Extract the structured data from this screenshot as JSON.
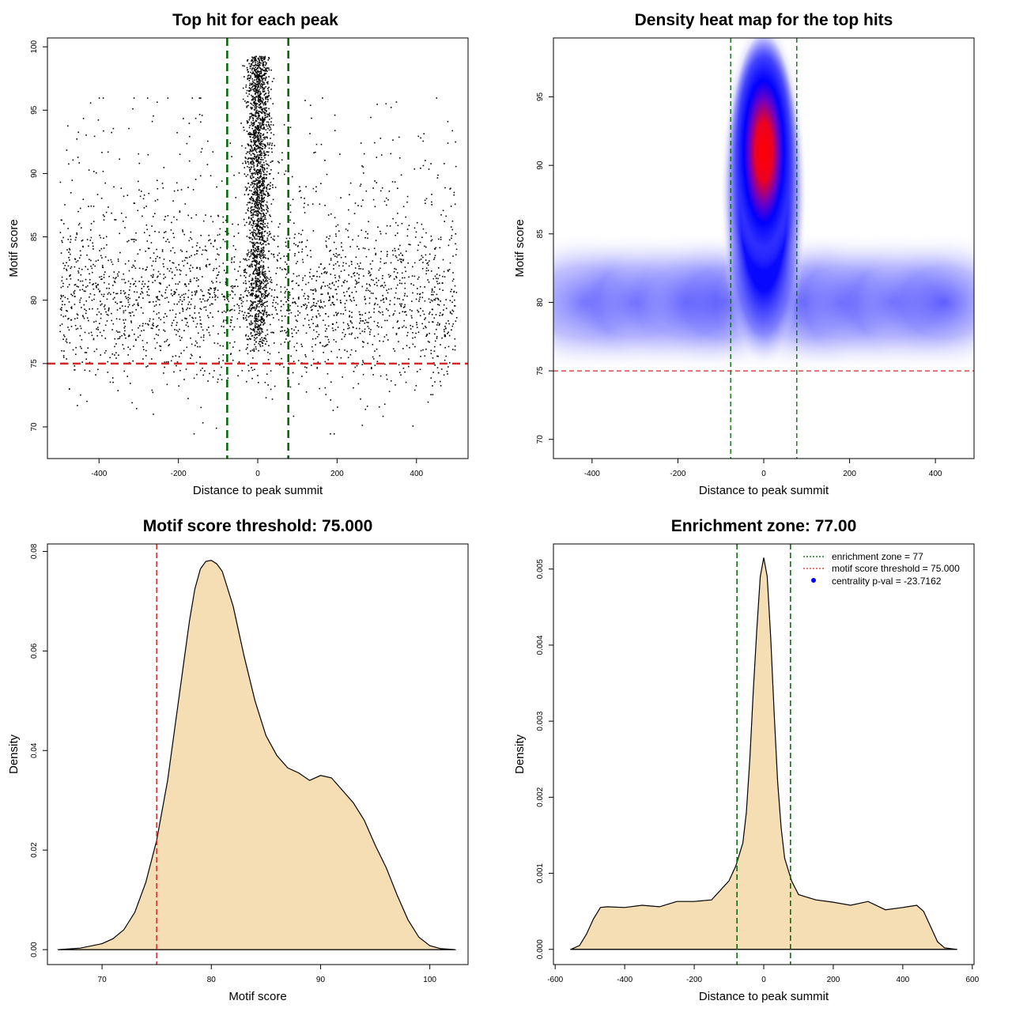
{
  "chart_data": [
    {
      "type": "scatter",
      "title": "Top hit for each peak",
      "xlabel": "Distance to peak summit",
      "ylabel": "Motif score",
      "xlim": [
        -530,
        530
      ],
      "ylim": [
        67.5,
        100.7
      ],
      "xticks": [
        -400,
        -200,
        0,
        200,
        400
      ],
      "xtick_labels": [
        "-400",
        "-200",
        "0",
        "200",
        "400"
      ],
      "yticks": [
        70,
        75,
        80,
        85,
        90,
        95,
        100
      ],
      "ytick_labels": [
        "70",
        "75",
        "80",
        "85",
        "90",
        "95",
        "100"
      ],
      "background_distribution": {
        "x_range": [
          -500,
          500
        ],
        "score_mean": 80,
        "score_sd": 3.2,
        "count": 2600
      },
      "central_cluster": {
        "x_mean": 0,
        "x_sd": 14,
        "score_range": [
          76,
          99.3
        ],
        "count": 1900
      },
      "vlines": [
        -77,
        77
      ],
      "hline": 75,
      "vline_color": "#006400",
      "hline_color": "#d62728",
      "point_color": "#000000"
    },
    {
      "type": "heatmap",
      "title": "Density heat map for the top hits",
      "xlabel": "Distance to peak summit",
      "ylabel": "Motif score",
      "xlim": [
        -490,
        490
      ],
      "ylim": [
        68.6,
        99.3
      ],
      "xticks": [
        -400,
        -200,
        0,
        200,
        400
      ],
      "xtick_labels": [
        "-400",
        "-200",
        "0",
        "200",
        "400"
      ],
      "yticks": [
        70,
        75,
        80,
        85,
        90,
        95
      ],
      "ytick_labels": [
        "70",
        "75",
        "80",
        "85",
        "90",
        "95"
      ],
      "hotspot": {
        "x": 0,
        "y": 91
      },
      "vlines": [
        -77,
        77
      ],
      "hline": 75,
      "color_scale": [
        "#ffffff",
        "#0000ff",
        "#ff0000"
      ]
    },
    {
      "type": "area",
      "title": "Motif score threshold: 75.000",
      "xlabel": "Motif score",
      "ylabel": "Density",
      "xlim": [
        65,
        103.5
      ],
      "ylim": [
        -0.003,
        0.0815
      ],
      "xticks": [
        70,
        80,
        90,
        100
      ],
      "xtick_labels": [
        "70",
        "80",
        "90",
        "100"
      ],
      "yticks": [
        0,
        0.02,
        0.04,
        0.06,
        0.08
      ],
      "ytick_labels": [
        "0.00",
        "0.02",
        "0.04",
        "0.06",
        "0.08"
      ],
      "x": [
        66,
        68,
        70,
        71,
        72,
        73,
        74,
        75,
        76,
        77,
        77.5,
        78,
        78.5,
        79,
        79.5,
        80,
        80.5,
        81,
        82,
        83,
        84,
        85,
        86,
        87,
        88,
        89,
        90,
        91,
        92,
        93,
        94,
        95,
        96,
        97,
        98,
        99,
        100,
        101,
        102.3
      ],
      "y": [
        0,
        0.0003,
        0.0012,
        0.0022,
        0.004,
        0.0075,
        0.0135,
        0.022,
        0.034,
        0.05,
        0.058,
        0.066,
        0.0725,
        0.0765,
        0.078,
        0.0782,
        0.0775,
        0.076,
        0.069,
        0.059,
        0.05,
        0.043,
        0.039,
        0.0365,
        0.0355,
        0.034,
        0.035,
        0.0345,
        0.032,
        0.0295,
        0.026,
        0.021,
        0.0165,
        0.011,
        0.006,
        0.0025,
        0.0008,
        0.0002,
        0
      ],
      "vline": 75,
      "fill_color": "#f5deb3",
      "vline_color": "#d62728"
    },
    {
      "type": "area",
      "title": "Enrichment zone: 77.00",
      "xlabel": "Distance to peak summit",
      "ylabel": "Density",
      "xlim": [
        -605,
        605
      ],
      "ylim": [
        -0.0002,
        0.00533
      ],
      "xticks": [
        -600,
        -400,
        -200,
        0,
        200,
        400,
        600
      ],
      "xtick_labels": [
        "-600",
        "-400",
        "-200",
        "0",
        "200",
        "400",
        "600"
      ],
      "yticks": [
        0,
        0.001,
        0.002,
        0.003,
        0.004,
        0.005
      ],
      "ytick_labels": [
        "0.000",
        "0.001",
        "0.002",
        "0.003",
        "0.004",
        "0.005"
      ],
      "x": [
        -555,
        -530,
        -510,
        -490,
        -470,
        -450,
        -400,
        -350,
        -300,
        -250,
        -200,
        -150,
        -100,
        -80,
        -60,
        -50,
        -40,
        -30,
        -20,
        -10,
        0,
        10,
        20,
        30,
        40,
        50,
        60,
        80,
        100,
        150,
        200,
        250,
        300,
        350,
        400,
        440,
        460,
        480,
        500,
        520,
        555
      ],
      "y": [
        0,
        5e-05,
        0.0002,
        0.0004,
        0.00055,
        0.00056,
        0.00055,
        0.00058,
        0.00056,
        0.00063,
        0.00063,
        0.00065,
        0.0009,
        0.0011,
        0.0014,
        0.0018,
        0.0025,
        0.0034,
        0.0042,
        0.0049,
        0.00515,
        0.0049,
        0.0041,
        0.0031,
        0.0022,
        0.0016,
        0.0012,
        0.0009,
        0.00072,
        0.00065,
        0.00062,
        0.00058,
        0.00063,
        0.00052,
        0.00055,
        0.00058,
        0.0005,
        0.0003,
        0.0001,
        2e-05,
        0
      ],
      "vlines": [
        -77,
        77
      ],
      "fill_color": "#f5deb3",
      "vline_color": "#006400",
      "legend": [
        {
          "label": "enrichment zone = 77",
          "style": "dotted",
          "color": "#006400"
        },
        {
          "label": "motif score threshold = 75.000",
          "style": "dotted",
          "color": "#d62728"
        },
        {
          "label": "centrality p-val = -23.7162",
          "style": "point",
          "color": "#0000ff"
        }
      ],
      "legend_position": "top-right"
    }
  ]
}
